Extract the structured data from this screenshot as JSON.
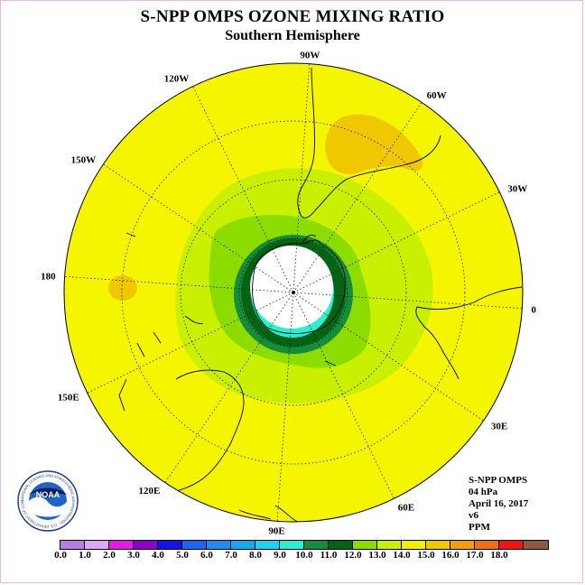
{
  "title": "S-NPP OMPS OZONE MIXING RATIO",
  "subtitle": "Southern Hemisphere",
  "longitude_labels": [
    {
      "text": "90W",
      "lon": -90
    },
    {
      "text": "60W",
      "lon": -60
    },
    {
      "text": "30W",
      "lon": -30
    },
    {
      "text": "0",
      "lon": 0
    },
    {
      "text": "30E",
      "lon": 30
    },
    {
      "text": "60E",
      "lon": 60
    },
    {
      "text": "90E",
      "lon": 90
    },
    {
      "text": "120E",
      "lon": 120
    },
    {
      "text": "150E",
      "lon": 150
    },
    {
      "text": "180",
      "lon": 180
    },
    {
      "text": "150W",
      "lon": -150
    },
    {
      "text": "120W",
      "lon": -120
    }
  ],
  "info": {
    "product": "S-NPP OMPS",
    "level": "04 hPa",
    "date": "April 16, 2017",
    "version": "v6",
    "units": "PPM"
  },
  "colorbar": {
    "colors": [
      "#b57ee6",
      "#dcaaf0",
      "#e619e6",
      "#8c00cc",
      "#1414e6",
      "#1e64f0",
      "#1e8cf0",
      "#14aaf0",
      "#1ed2f0",
      "#28f0d2",
      "#148c3c",
      "#006414",
      "#8cdc00",
      "#c8f000",
      "#f0f000",
      "#f0c800",
      "#f0a000",
      "#f06e14",
      "#f01414",
      "#8c5a3c"
    ],
    "ticks": [
      "0.0",
      "1.0",
      "2.0",
      "3.0",
      "4.0",
      "5.0",
      "6.0",
      "7.0",
      "8.0",
      "9.0",
      "10.0",
      "11.0",
      "12.0",
      "13.0",
      "14.0",
      "15.0",
      "16.0",
      "17.0",
      "18.0"
    ]
  },
  "logo": {
    "text": "NOAA",
    "ring_text": "NATIONAL OCEANIC AND ATMOSPHERIC ADMINISTRATION · U.S. DEPARTMENT OF COMMERCE"
  },
  "map_colors": {
    "bg": "#f5f500",
    "light_green": "#c8f000",
    "mid_green": "#8cdc00",
    "dark_green": "#148c3c",
    "darkest_green": "#006414",
    "cyan": "#28f0d2",
    "orange": "#f0c800",
    "pole": "#ffffff"
  }
}
